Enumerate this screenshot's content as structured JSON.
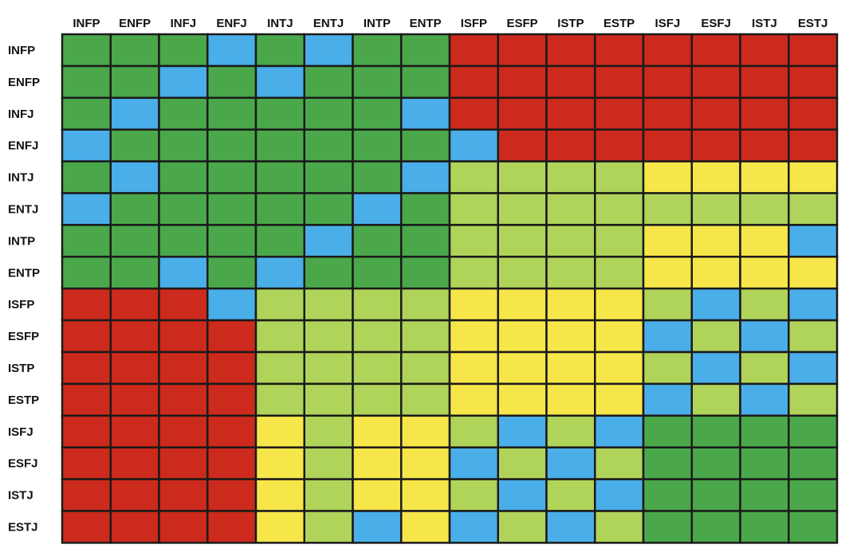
{
  "chart_data": {
    "type": "heatmap",
    "title": "",
    "xlabel": "",
    "ylabel": "",
    "x_categories": [
      "INFP",
      "ENFP",
      "INFJ",
      "ENFJ",
      "INTJ",
      "ENTJ",
      "INTP",
      "ENTP",
      "ISFP",
      "ESFP",
      "ISTP",
      "ESTP",
      "ISFJ",
      "ESFJ",
      "ISTJ",
      "ESTJ"
    ],
    "y_categories": [
      "INFP",
      "ENFP",
      "INFJ",
      "ENFJ",
      "INTJ",
      "ENTJ",
      "INTP",
      "ENTP",
      "ISFP",
      "ESFP",
      "ISTP",
      "ESTP",
      "ISFJ",
      "ESFJ",
      "ISTJ",
      "ESTJ"
    ],
    "legend": {
      "B": {
        "color": "#4aaee8"
      },
      "G": {
        "color": "#4aa84a"
      },
      "L": {
        "color": "#b0d35a"
      },
      "Y": {
        "color": "#f7e64a"
      },
      "R": {
        "color": "#cc2a1c"
      }
    },
    "values": [
      [
        "G",
        "G",
        "G",
        "B",
        "G",
        "B",
        "G",
        "G",
        "R",
        "R",
        "R",
        "R",
        "R",
        "R",
        "R",
        "R"
      ],
      [
        "G",
        "G",
        "B",
        "G",
        "B",
        "G",
        "G",
        "G",
        "R",
        "R",
        "R",
        "R",
        "R",
        "R",
        "R",
        "R"
      ],
      [
        "G",
        "B",
        "G",
        "G",
        "G",
        "G",
        "G",
        "B",
        "R",
        "R",
        "R",
        "R",
        "R",
        "R",
        "R",
        "R"
      ],
      [
        "B",
        "G",
        "G",
        "G",
        "G",
        "G",
        "G",
        "G",
        "B",
        "R",
        "R",
        "R",
        "R",
        "R",
        "R",
        "R"
      ],
      [
        "G",
        "B",
        "G",
        "G",
        "G",
        "G",
        "G",
        "B",
        "L",
        "L",
        "L",
        "L",
        "Y",
        "Y",
        "Y",
        "Y"
      ],
      [
        "B",
        "G",
        "G",
        "G",
        "G",
        "G",
        "B",
        "G",
        "L",
        "L",
        "L",
        "L",
        "L",
        "L",
        "L",
        "L"
      ],
      [
        "G",
        "G",
        "G",
        "G",
        "G",
        "B",
        "G",
        "G",
        "L",
        "L",
        "L",
        "L",
        "Y",
        "Y",
        "Y",
        "B"
      ],
      [
        "G",
        "G",
        "B",
        "G",
        "B",
        "G",
        "G",
        "G",
        "L",
        "L",
        "L",
        "L",
        "Y",
        "Y",
        "Y",
        "Y"
      ],
      [
        "R",
        "R",
        "R",
        "B",
        "L",
        "L",
        "L",
        "L",
        "Y",
        "Y",
        "Y",
        "Y",
        "L",
        "B",
        "L",
        "B"
      ],
      [
        "R",
        "R",
        "R",
        "R",
        "L",
        "L",
        "L",
        "L",
        "Y",
        "Y",
        "Y",
        "Y",
        "B",
        "L",
        "B",
        "L"
      ],
      [
        "R",
        "R",
        "R",
        "R",
        "L",
        "L",
        "L",
        "L",
        "Y",
        "Y",
        "Y",
        "Y",
        "L",
        "B",
        "L",
        "B"
      ],
      [
        "R",
        "R",
        "R",
        "R",
        "L",
        "L",
        "L",
        "L",
        "Y",
        "Y",
        "Y",
        "Y",
        "B",
        "L",
        "B",
        "L"
      ],
      [
        "R",
        "R",
        "R",
        "R",
        "Y",
        "L",
        "Y",
        "Y",
        "L",
        "B",
        "L",
        "B",
        "G",
        "G",
        "G",
        "G"
      ],
      [
        "R",
        "R",
        "R",
        "R",
        "Y",
        "L",
        "Y",
        "Y",
        "B",
        "L",
        "B",
        "L",
        "G",
        "G",
        "G",
        "G"
      ],
      [
        "R",
        "R",
        "R",
        "R",
        "Y",
        "L",
        "Y",
        "Y",
        "L",
        "B",
        "L",
        "B",
        "G",
        "G",
        "G",
        "G"
      ],
      [
        "R",
        "R",
        "R",
        "R",
        "Y",
        "L",
        "B",
        "Y",
        "B",
        "L",
        "B",
        "L",
        "G",
        "G",
        "G",
        "G"
      ]
    ],
    "grid": true,
    "legend_placement": "none"
  }
}
